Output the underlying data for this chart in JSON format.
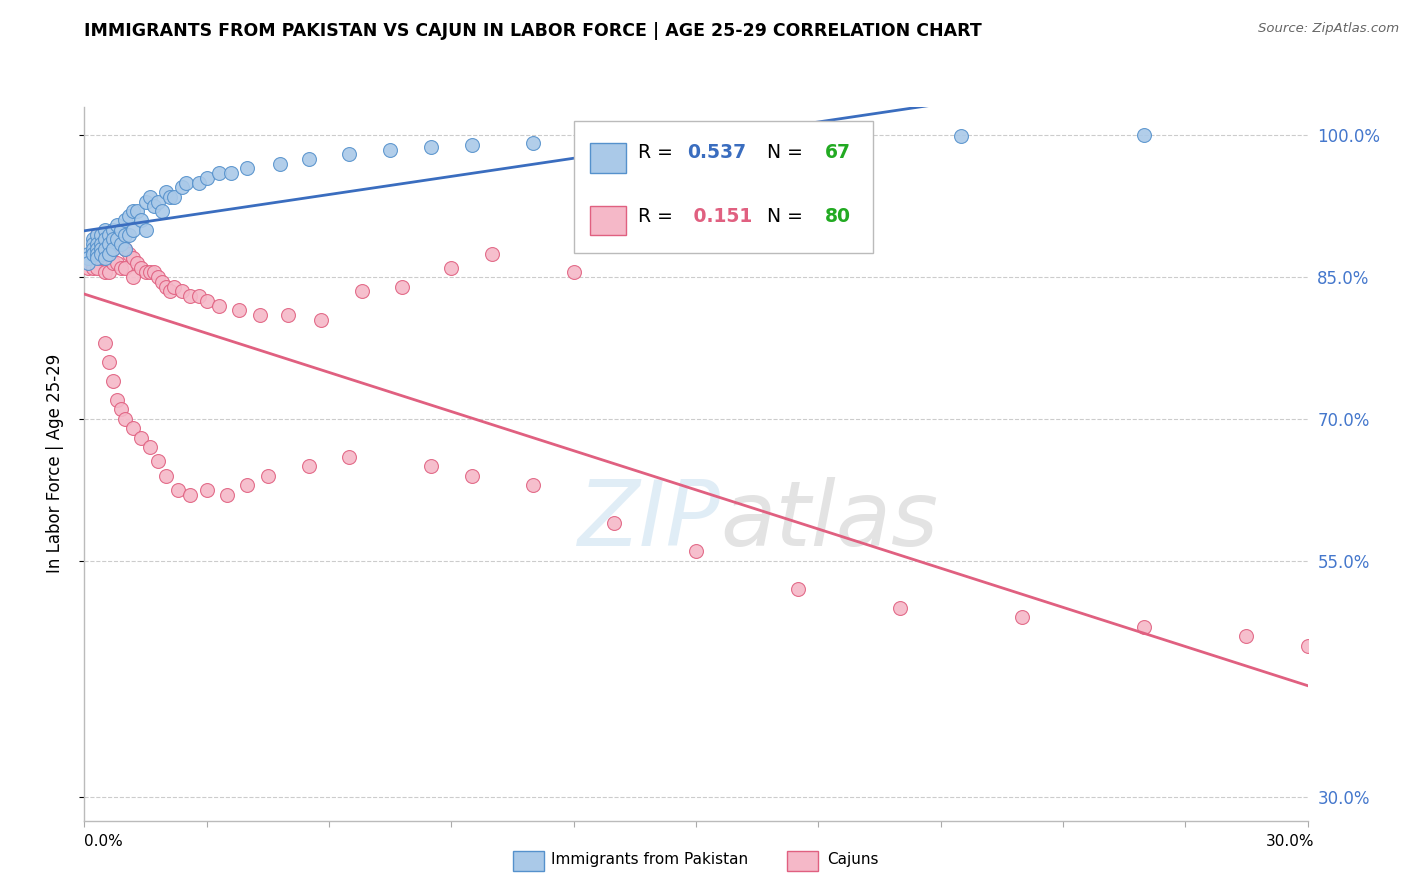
{
  "title": "IMMIGRANTS FROM PAKISTAN VS CAJUN IN LABOR FORCE | AGE 25-29 CORRELATION CHART",
  "source": "Source: ZipAtlas.com",
  "ylabel": "In Labor Force | Age 25-29",
  "ytick_vals": [
    0.3,
    0.55,
    0.7,
    0.85,
    1.0
  ],
  "ytick_labels": [
    "30.0%",
    "55.0%",
    "70.0%",
    "85.0%",
    "100.0%"
  ],
  "xmin": 0.0,
  "xmax": 0.3,
  "ymin": 0.275,
  "ymax": 1.03,
  "pakistan_R": 0.537,
  "pakistan_N": 67,
  "cajun_R": 0.151,
  "cajun_N": 80,
  "pakistan_fill": "#aac9e8",
  "pakistan_edge": "#5591cc",
  "cajun_fill": "#f5b8c8",
  "cajun_edge": "#e06080",
  "pak_line_color": "#3a6dbf",
  "caj_line_color": "#e06080",
  "R_text_color_pak": "#3a6dbf",
  "R_text_color_caj": "#e06080",
  "N_text_color": "#22aa22",
  "pakistan_x": [
    0.001,
    0.001,
    0.001,
    0.002,
    0.002,
    0.002,
    0.002,
    0.003,
    0.003,
    0.003,
    0.003,
    0.003,
    0.004,
    0.004,
    0.004,
    0.004,
    0.005,
    0.005,
    0.005,
    0.005,
    0.006,
    0.006,
    0.006,
    0.007,
    0.007,
    0.007,
    0.008,
    0.008,
    0.009,
    0.009,
    0.01,
    0.01,
    0.01,
    0.011,
    0.011,
    0.012,
    0.012,
    0.013,
    0.014,
    0.015,
    0.015,
    0.016,
    0.017,
    0.018,
    0.019,
    0.02,
    0.021,
    0.022,
    0.024,
    0.025,
    0.028,
    0.03,
    0.033,
    0.036,
    0.04,
    0.048,
    0.055,
    0.065,
    0.075,
    0.085,
    0.095,
    0.11,
    0.13,
    0.155,
    0.18,
    0.215,
    0.26
  ],
  "pakistan_y": [
    0.875,
    0.87,
    0.865,
    0.89,
    0.885,
    0.88,
    0.875,
    0.895,
    0.885,
    0.88,
    0.875,
    0.87,
    0.895,
    0.885,
    0.88,
    0.875,
    0.9,
    0.89,
    0.88,
    0.87,
    0.895,
    0.885,
    0.875,
    0.9,
    0.89,
    0.88,
    0.905,
    0.89,
    0.9,
    0.885,
    0.91,
    0.895,
    0.88,
    0.915,
    0.895,
    0.92,
    0.9,
    0.92,
    0.91,
    0.93,
    0.9,
    0.935,
    0.925,
    0.93,
    0.92,
    0.94,
    0.935,
    0.935,
    0.945,
    0.95,
    0.95,
    0.955,
    0.96,
    0.96,
    0.965,
    0.97,
    0.975,
    0.98,
    0.985,
    0.988,
    0.99,
    0.992,
    0.995,
    0.997,
    0.998,
    0.999,
    1.0
  ],
  "cajun_x": [
    0.001,
    0.001,
    0.002,
    0.002,
    0.003,
    0.003,
    0.003,
    0.004,
    0.004,
    0.005,
    0.005,
    0.005,
    0.006,
    0.006,
    0.006,
    0.007,
    0.007,
    0.008,
    0.008,
    0.009,
    0.009,
    0.01,
    0.01,
    0.011,
    0.012,
    0.012,
    0.013,
    0.014,
    0.015,
    0.016,
    0.017,
    0.018,
    0.019,
    0.02,
    0.021,
    0.022,
    0.024,
    0.026,
    0.028,
    0.03,
    0.033,
    0.038,
    0.043,
    0.05,
    0.058,
    0.068,
    0.078,
    0.09,
    0.1,
    0.12,
    0.005,
    0.006,
    0.007,
    0.008,
    0.009,
    0.01,
    0.012,
    0.014,
    0.016,
    0.018,
    0.02,
    0.023,
    0.026,
    0.03,
    0.035,
    0.04,
    0.045,
    0.055,
    0.065,
    0.085,
    0.095,
    0.11,
    0.13,
    0.15,
    0.175,
    0.2,
    0.23,
    0.26,
    0.285,
    0.3
  ],
  "cajun_y": [
    0.87,
    0.86,
    0.875,
    0.86,
    0.895,
    0.875,
    0.86,
    0.885,
    0.87,
    0.89,
    0.875,
    0.855,
    0.895,
    0.875,
    0.855,
    0.88,
    0.865,
    0.885,
    0.865,
    0.885,
    0.86,
    0.88,
    0.86,
    0.875,
    0.87,
    0.85,
    0.865,
    0.86,
    0.855,
    0.855,
    0.855,
    0.85,
    0.845,
    0.84,
    0.835,
    0.84,
    0.835,
    0.83,
    0.83,
    0.825,
    0.82,
    0.815,
    0.81,
    0.81,
    0.805,
    0.835,
    0.84,
    0.86,
    0.875,
    0.855,
    0.78,
    0.76,
    0.74,
    0.72,
    0.71,
    0.7,
    0.69,
    0.68,
    0.67,
    0.655,
    0.64,
    0.625,
    0.62,
    0.625,
    0.62,
    0.63,
    0.64,
    0.65,
    0.66,
    0.65,
    0.64,
    0.63,
    0.59,
    0.56,
    0.52,
    0.5,
    0.49,
    0.48,
    0.47,
    0.46
  ]
}
